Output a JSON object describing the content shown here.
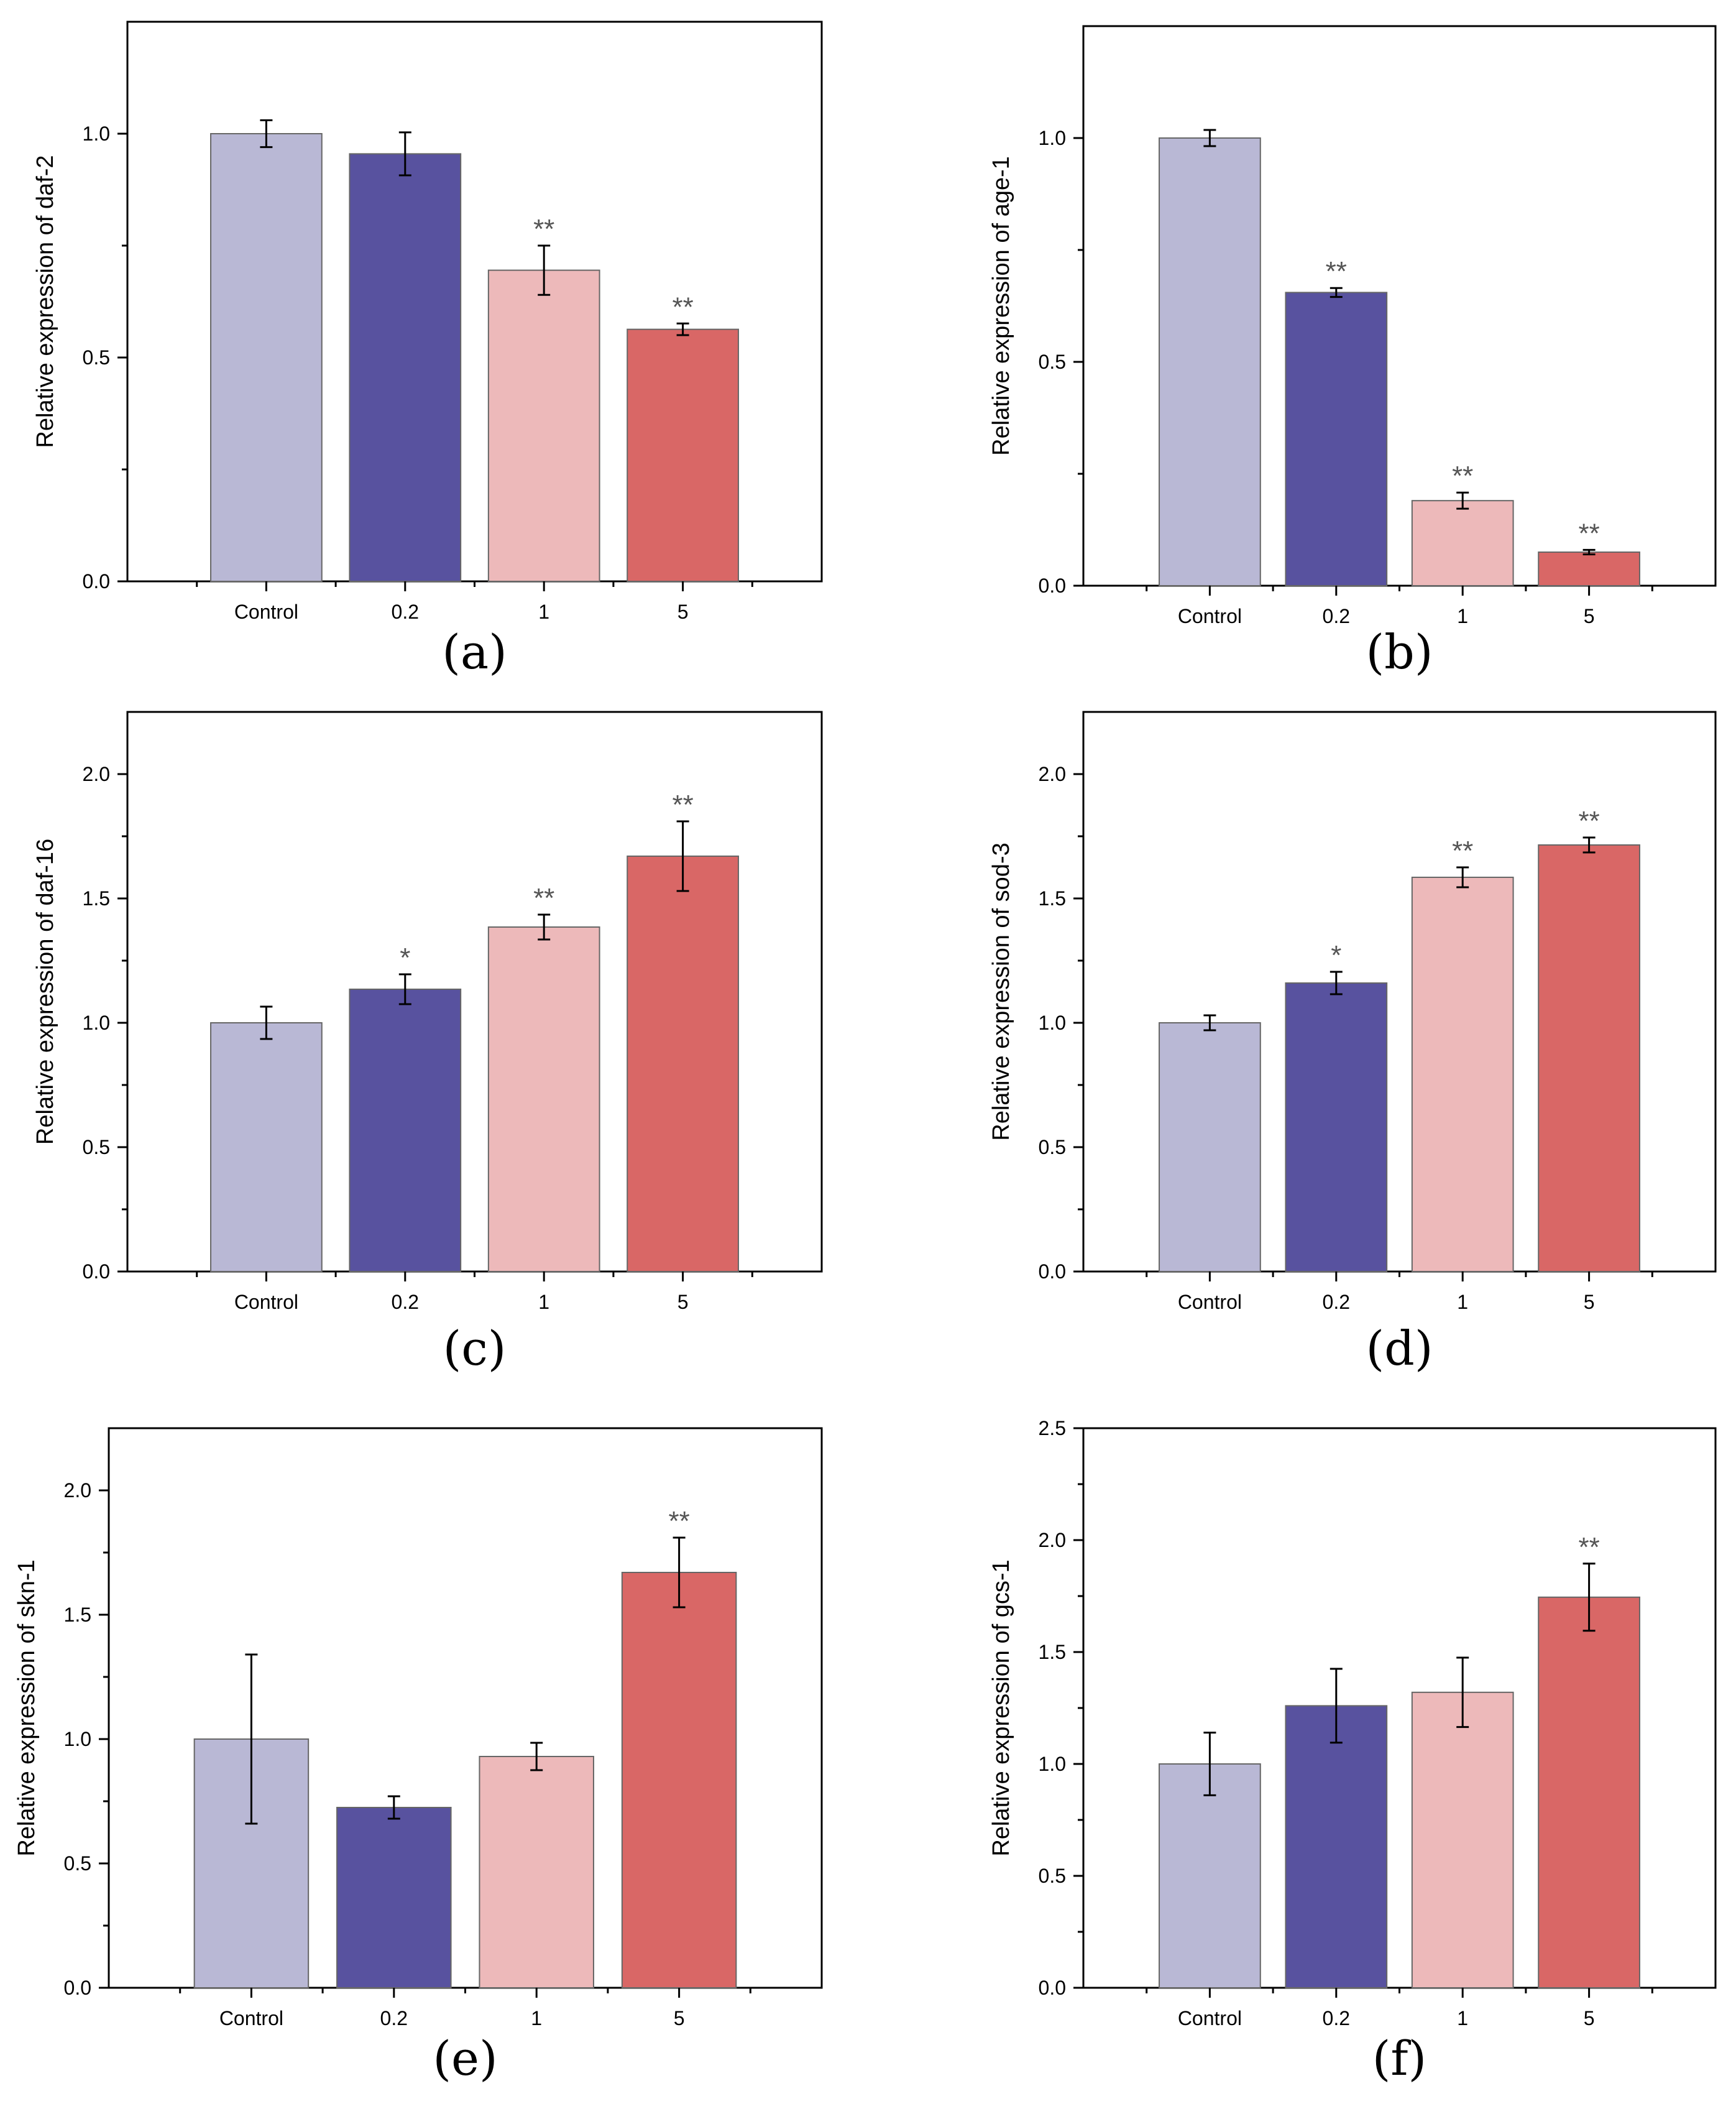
{
  "figure": {
    "categories": [
      "Control",
      "0.2",
      "1",
      "5"
    ],
    "colors": [
      "#b9b8d5",
      "#58529f",
      "#edb9ba",
      "#d96766"
    ],
    "axis_color": "#000000",
    "errorbar_color": "#000000",
    "asterisk_color": "#555555"
  },
  "chart_data": [
    {
      "id": "a",
      "panel_label": "(a)",
      "type": "bar",
      "title": "",
      "xlabel": "",
      "ylabel": "Relative expression of daf-2",
      "categories": [
        "Control",
        "0.2",
        "1",
        "5"
      ],
      "values": [
        1.0,
        0.955,
        0.695,
        0.563
      ],
      "errors": [
        0.03,
        0.048,
        0.055,
        0.013
      ],
      "significance": [
        "",
        "",
        "**",
        "**"
      ],
      "ylim": [
        0,
        1.25
      ],
      "yticks": [
        0.0,
        0.5,
        1.0
      ],
      "ytick_labels": [
        "0.0",
        "0.5",
        "1.0"
      ]
    },
    {
      "id": "b",
      "panel_label": "(b)",
      "type": "bar",
      "title": "",
      "xlabel": "",
      "ylabel": "Relative expression of age-1",
      "categories": [
        "Control",
        "0.2",
        "1",
        "5"
      ],
      "values": [
        1.0,
        0.655,
        0.19,
        0.075
      ],
      "errors": [
        0.018,
        0.01,
        0.018,
        0.005
      ],
      "significance": [
        "",
        "**",
        "**",
        "**"
      ],
      "ylim": [
        0,
        1.25
      ],
      "yticks": [
        0.0,
        0.5,
        1.0
      ],
      "ytick_labels": [
        "0.0",
        "0.5",
        "1.0"
      ]
    },
    {
      "id": "c",
      "panel_label": "(c)",
      "type": "bar",
      "title": "",
      "xlabel": "",
      "ylabel": "Relative expression of daf-16",
      "categories": [
        "Control",
        "0.2",
        "1",
        "5"
      ],
      "values": [
        1.0,
        1.135,
        1.385,
        1.67
      ],
      "errors": [
        0.065,
        0.06,
        0.05,
        0.14
      ],
      "significance": [
        "",
        "*",
        "**",
        "**"
      ],
      "ylim": [
        0,
        2.25
      ],
      "yticks": [
        0.0,
        0.5,
        1.0,
        1.5,
        2.0
      ],
      "ytick_labels": [
        "0.0",
        "0.5",
        "1.0",
        "1.5",
        "2.0"
      ]
    },
    {
      "id": "d",
      "panel_label": "(d)",
      "type": "bar",
      "title": "",
      "xlabel": "",
      "ylabel": "Relative expression of sod-3",
      "categories": [
        "Control",
        "0.2",
        "1",
        "5"
      ],
      "values": [
        1.0,
        1.16,
        1.585,
        1.715
      ],
      "errors": [
        0.03,
        0.045,
        0.04,
        0.03
      ],
      "significance": [
        "",
        "*",
        "**",
        "**"
      ],
      "ylim": [
        0,
        2.25
      ],
      "yticks": [
        0.0,
        0.5,
        1.0,
        1.5,
        2.0
      ],
      "ytick_labels": [
        "0.0",
        "0.5",
        "1.0",
        "1.5",
        "2.0"
      ]
    },
    {
      "id": "e",
      "panel_label": "(e)",
      "type": "bar",
      "title": "",
      "xlabel": "",
      "ylabel": "Relative expression of skn-1",
      "categories": [
        "Control",
        "0.2",
        "1",
        "5"
      ],
      "values": [
        1.0,
        0.725,
        0.93,
        1.67
      ],
      "errors": [
        0.34,
        0.045,
        0.055,
        0.14
      ],
      "significance": [
        "",
        "",
        "",
        "**"
      ],
      "ylim": [
        0,
        2.25
      ],
      "yticks": [
        0.0,
        0.5,
        1.0,
        1.5,
        2.0
      ],
      "ytick_labels": [
        "0.0",
        "0.5",
        "1.0",
        "1.5",
        "2.0"
      ]
    },
    {
      "id": "f",
      "panel_label": "(f)",
      "type": "bar",
      "title": "",
      "xlabel": "",
      "ylabel": "Relative expression of gcs-1",
      "categories": [
        "Control",
        "0.2",
        "1",
        "5"
      ],
      "values": [
        1.0,
        1.26,
        1.32,
        1.745
      ],
      "errors": [
        0.14,
        0.165,
        0.155,
        0.15
      ],
      "significance": [
        "",
        "",
        "",
        "**"
      ],
      "ylim": [
        0,
        2.5
      ],
      "yticks": [
        0.0,
        0.5,
        1.0,
        1.5,
        2.0,
        2.5
      ],
      "ytick_labels": [
        "0.0",
        "0.5",
        "1.0",
        "1.5",
        "2.0",
        "2.5"
      ]
    }
  ]
}
